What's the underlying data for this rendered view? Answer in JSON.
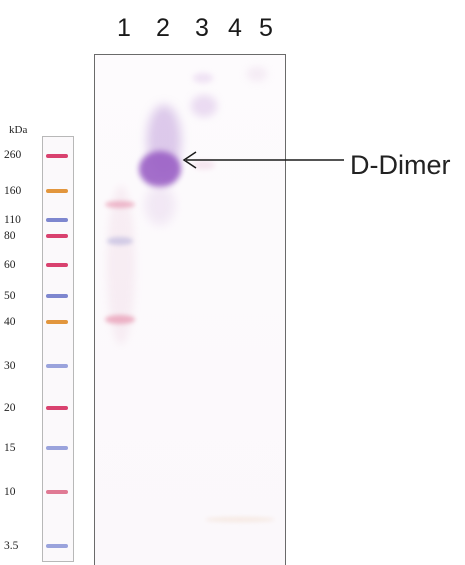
{
  "lanes": [
    {
      "label": "1"
    },
    {
      "label": "2"
    },
    {
      "label": "3"
    },
    {
      "label": "4"
    },
    {
      "label": "5"
    }
  ],
  "marker": {
    "unit": "kDa",
    "sizes": [
      "260",
      "160",
      "110",
      "80",
      "60",
      "50",
      "40",
      "30",
      "20",
      "15",
      "10",
      "3.5"
    ],
    "colors": {
      "red": "#d9426f",
      "blue": "#7e87cf",
      "orange": "#e2963d",
      "purple": "#9a6fc2"
    }
  },
  "annotation": {
    "label": "D-Dimer",
    "band_color": "#9b62c6"
  }
}
